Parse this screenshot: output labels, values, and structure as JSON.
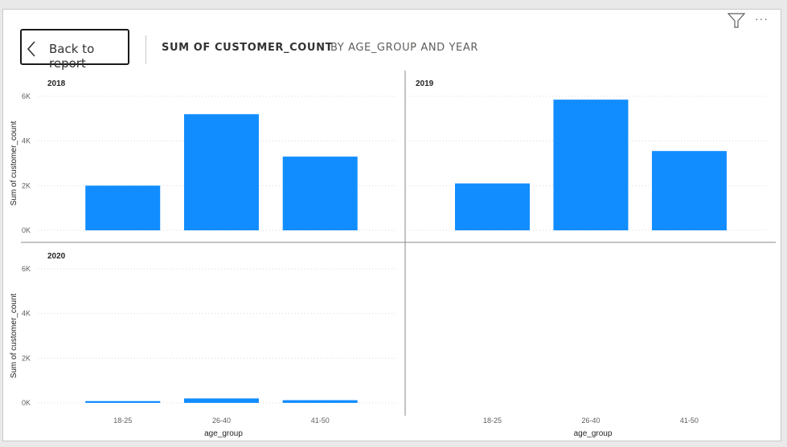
{
  "header": {
    "back_label": "Back to report",
    "title": "SUM OF CUSTOMER_COUNT",
    "subtitle": "BY AGE_GROUP AND YEAR"
  },
  "icons": {
    "back": "chevron-left-icon",
    "filter": "filter-icon",
    "more": "more-options-icon",
    "more_glyph": "···"
  },
  "colors": {
    "bar": "#118DFF",
    "grid": "#d9d9d9",
    "divider": "#8a8a8a"
  },
  "chart_data": {
    "type": "bar",
    "layout": "small-multiples",
    "xlabel": "age_group",
    "ylabel": "Sum of customer_count",
    "categories": [
      "18-25",
      "26-40",
      "41-50"
    ],
    "ylim": [
      0,
      6000
    ],
    "yticks": [
      0,
      2000,
      4000,
      6000
    ],
    "ytick_labels": [
      "0K",
      "2K",
      "4K",
      "6K"
    ],
    "grid": true,
    "panels": [
      {
        "title": "2018",
        "values": [
          2000,
          5200,
          3300
        ]
      },
      {
        "title": "2019",
        "values": [
          2100,
          5850,
          3550
        ]
      },
      {
        "title": "2020",
        "values": [
          80,
          200,
          120
        ]
      }
    ]
  }
}
